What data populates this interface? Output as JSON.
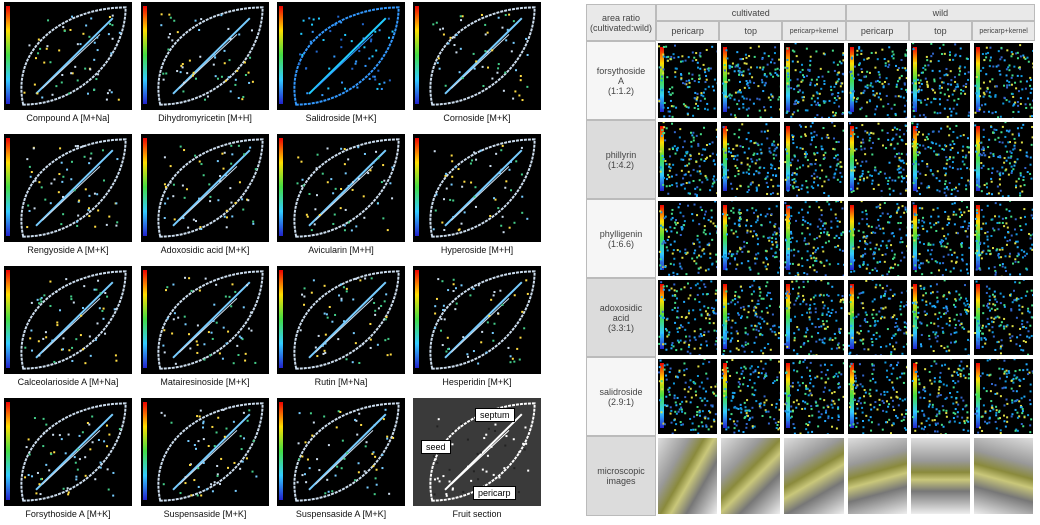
{
  "left_panels": {
    "captions": [
      "Compound A [M+Na]",
      "Dihydromyricetin [M+H]",
      "Salidroside [M+K]",
      "Cornoside [M+K]",
      "Rengyoside A [M+K]",
      "Adoxosidic acid [M+K]",
      "Avicularin [M+H]",
      "Hyperoside [M+H]",
      "Calceolarioside A [M+Na]",
      "Matairesinoside [M+K]",
      "Rutin [M+Na]",
      "Hesperidin [M+K]",
      "Forsythoside A [M+K]",
      "Suspensaside [M+K]",
      "Suspensaside A [M+K]",
      "Fruit section"
    ],
    "fruit_section_labels": [
      "septum",
      "seed",
      "pericarp"
    ]
  },
  "table": {
    "corner_header": "area ratio (cultivated:wild)",
    "groups": [
      "cultivated",
      "wild"
    ],
    "columns": [
      "pericarp",
      "top",
      "pericarp+kernel",
      "pericarp",
      "top",
      "pericarp+kernel"
    ],
    "rows": [
      {
        "name": "forsythoside A",
        "ratio": "(1:1.2)"
      },
      {
        "name": "phillyrin",
        "ratio": "(1:4.2)"
      },
      {
        "name": "phylligenin",
        "ratio": "(1:6.6)"
      },
      {
        "name": "adoxosidic acid",
        "ratio": "(3.3:1)"
      },
      {
        "name": "salidroside",
        "ratio": "(2.9:1)"
      }
    ],
    "last_row": "microscopic images"
  }
}
